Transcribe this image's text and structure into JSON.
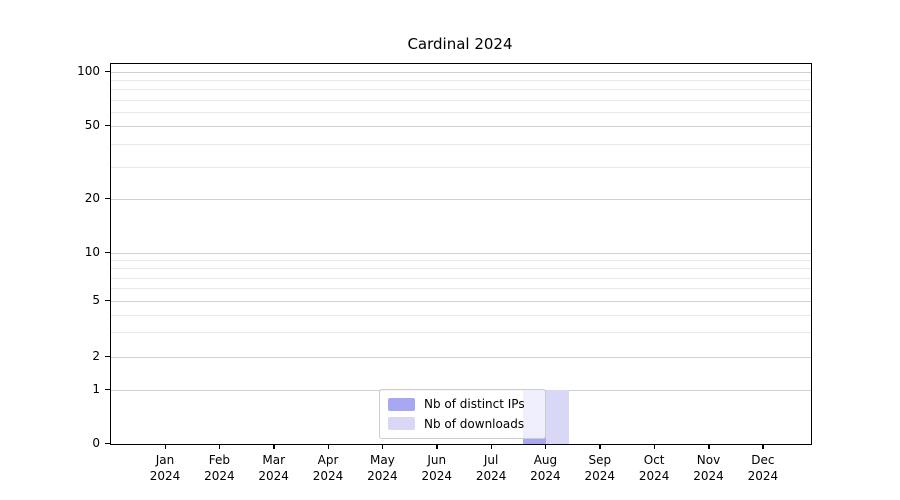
{
  "title": "Cardinal 2024",
  "legend": {
    "items": [
      {
        "label": "Nb of distinct IPs",
        "color": "#a8a8f2"
      },
      {
        "label": "Nb of downloads",
        "color": "#d8d8f6"
      }
    ]
  },
  "chart_data": {
    "type": "bar",
    "title": "Cardinal 2024",
    "categories": [
      "Jan 2024",
      "Feb 2024",
      "Mar 2024",
      "Apr 2024",
      "May 2024",
      "Jun 2024",
      "Jul 2024",
      "Aug 2024",
      "Sep 2024",
      "Oct 2024",
      "Nov 2024",
      "Dec 2024"
    ],
    "series": [
      {
        "name": "Nb of distinct IPs",
        "color": "#a8a8f2",
        "values": [
          0,
          0,
          0,
          0,
          0,
          0,
          0,
          1,
          0,
          0,
          0,
          0
        ]
      },
      {
        "name": "Nb of downloads",
        "color": "#d8d8f6",
        "values": [
          0,
          0,
          0,
          0,
          0,
          0,
          0,
          1,
          0,
          0,
          0,
          0
        ]
      }
    ],
    "yscale": "symlog",
    "yticks": [
      0,
      1,
      2,
      5,
      10,
      20,
      50,
      100
    ],
    "yminorticks": [
      3,
      4,
      6,
      7,
      8,
      9,
      30,
      40,
      60,
      70,
      80,
      90
    ],
    "ylim": [
      0,
      110
    ],
    "grid": true,
    "legend_position": "lower center"
  }
}
